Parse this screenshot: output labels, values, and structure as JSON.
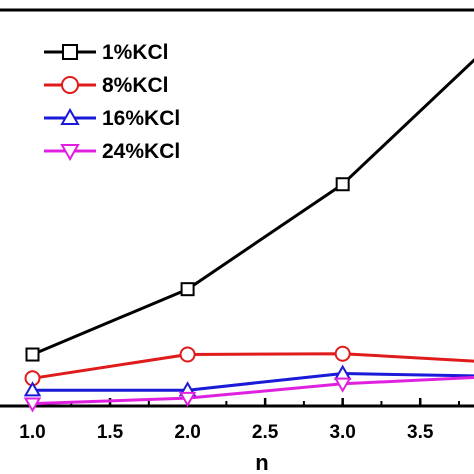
{
  "chart_data": {
    "type": "line",
    "title": "",
    "xlabel": "n",
    "ylabel": "",
    "xlim": [
      0.9,
      3.95
    ],
    "ylim": [
      0,
      100
    ],
    "x_ticks": [
      "1.0",
      "1.5",
      "2.0",
      "2.5",
      "3.0",
      "3.5"
    ],
    "x_tick_values": [
      1.0,
      1.5,
      2.0,
      2.5,
      3.0,
      3.5
    ],
    "grid": false,
    "legend_position": "top-left",
    "series": [
      {
        "name": "1%KCl",
        "color": "#000000",
        "marker": "square",
        "x": [
          1.0,
          2.0,
          3.0,
          4.0
        ],
        "y": [
          13.0,
          29.5,
          56.0,
          93.0
        ]
      },
      {
        "name": "8%KCl",
        "color": "#e01b1b",
        "marker": "circle",
        "x": [
          1.0,
          2.0,
          3.0,
          4.0
        ],
        "y": [
          7.0,
          13.0,
          13.2,
          11.0
        ]
      },
      {
        "name": "16%KCl",
        "color": "#1a1ad8",
        "marker": "triangle-up",
        "x": [
          1.0,
          2.0,
          3.0,
          4.0
        ],
        "y": [
          4.0,
          4.0,
          8.2,
          7.5
        ]
      },
      {
        "name": "24%KCl",
        "color": "#e020e0",
        "marker": "triangle-down",
        "x": [
          1.0,
          2.0,
          3.0,
          4.0
        ],
        "y": [
          0.6,
          2.0,
          5.6,
          7.5
        ]
      }
    ]
  }
}
